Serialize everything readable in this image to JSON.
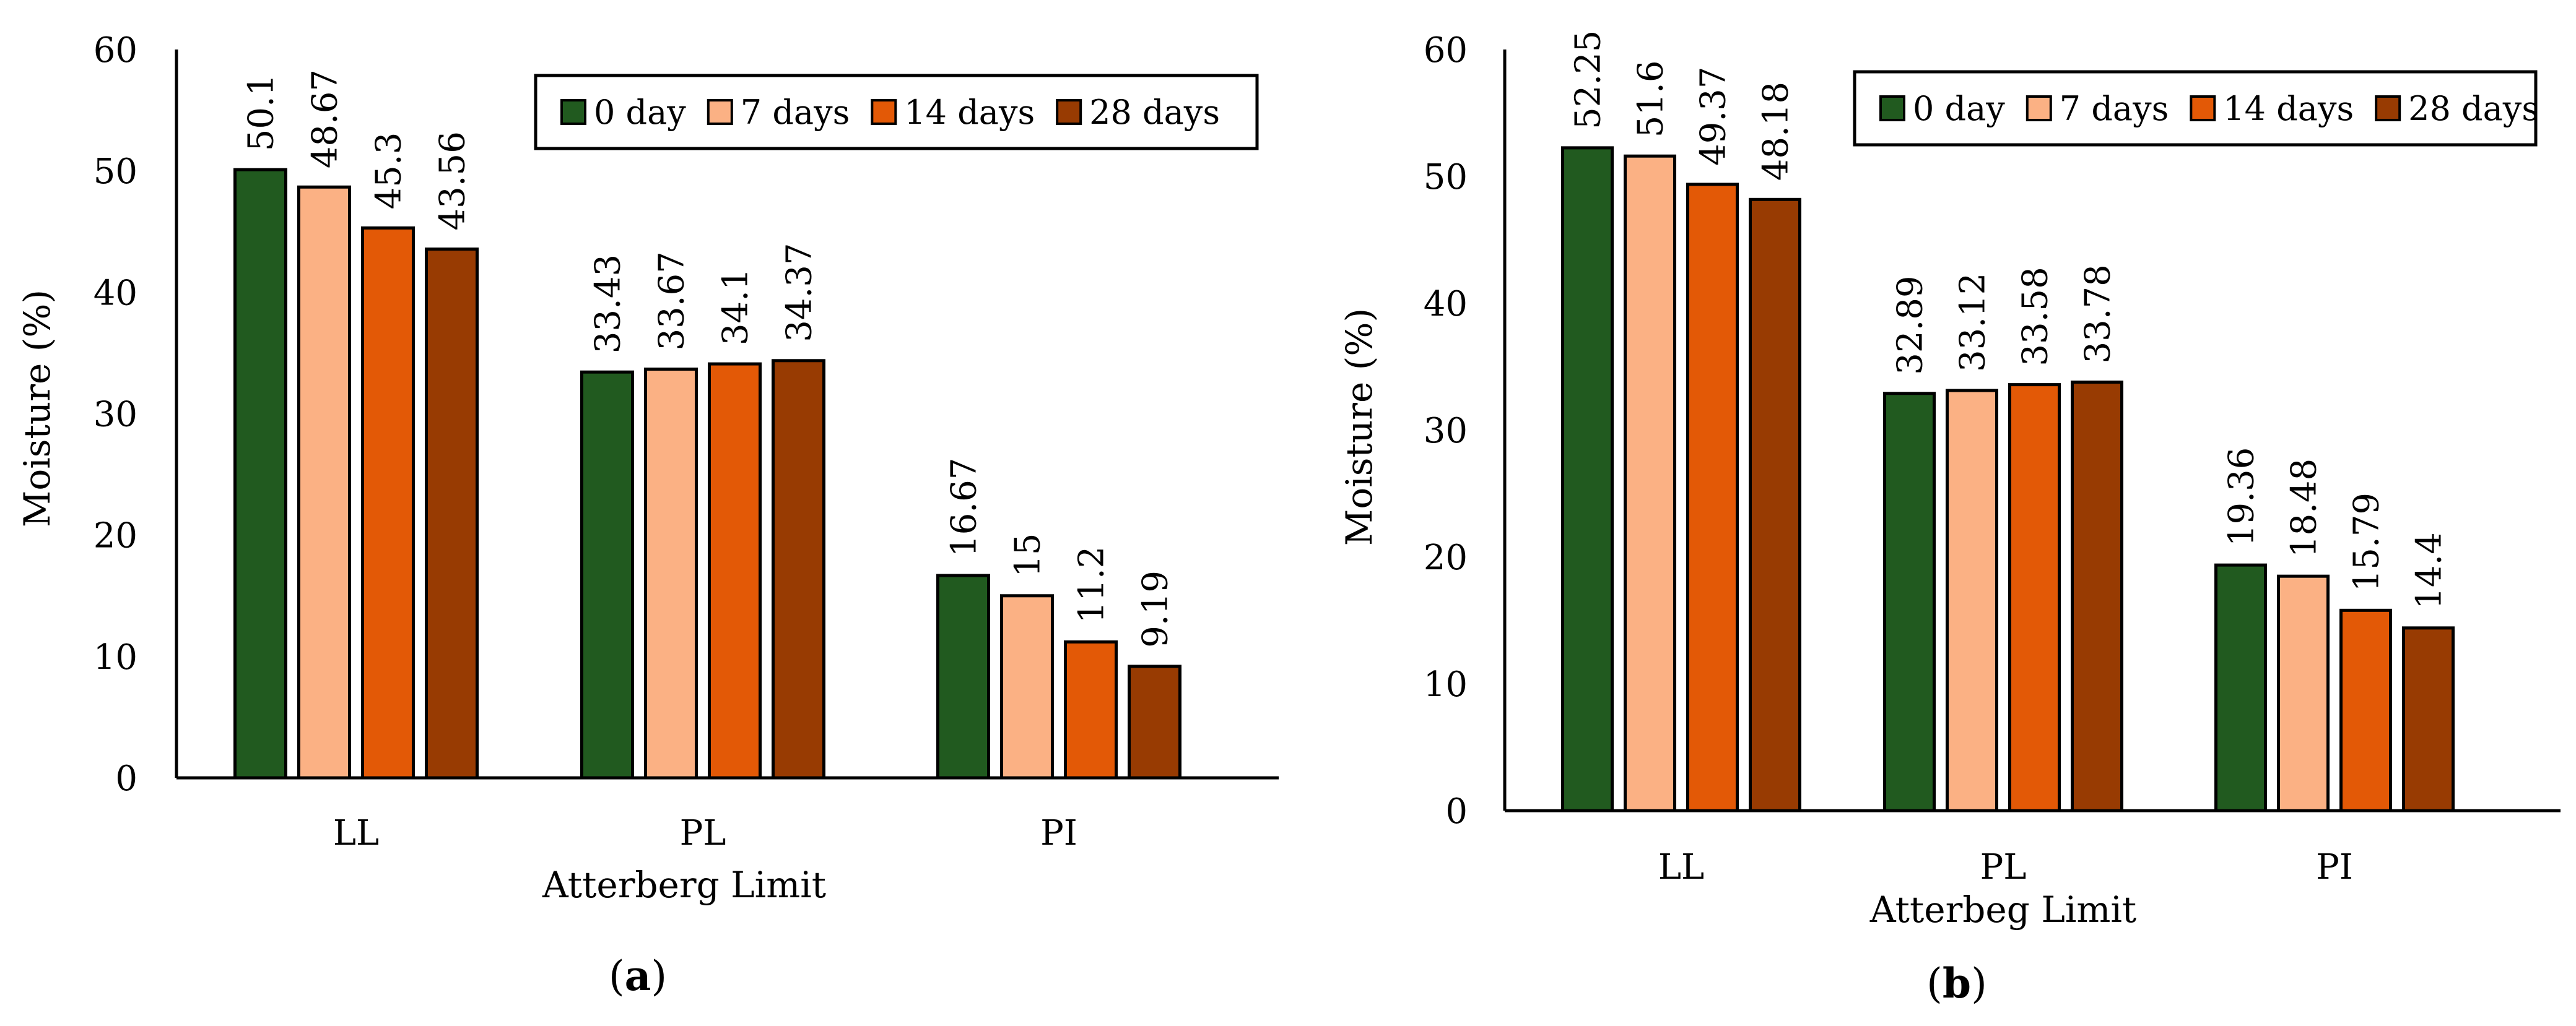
{
  "chart_data": [
    {
      "type": "bar",
      "panel": "a",
      "categories": [
        "LL",
        "PL",
        "PI"
      ],
      "series": [
        {
          "name": "0 day",
          "color": "#215a1f",
          "values": [
            50.1,
            33.43,
            16.67
          ],
          "labels": [
            "50.1",
            "33.43",
            "16.67"
          ]
        },
        {
          "name": "7 days",
          "color": "#fbb184",
          "values": [
            48.67,
            33.67,
            15
          ],
          "labels": [
            "48.67",
            "33.67",
            "15"
          ]
        },
        {
          "name": "14 days",
          "color": "#e35906",
          "values": [
            45.3,
            34.1,
            11.2
          ],
          "labels": [
            "45.3",
            "34.1",
            "11.2"
          ]
        },
        {
          "name": "28 days",
          "color": "#983b02",
          "values": [
            43.56,
            34.37,
            9.19
          ],
          "labels": [
            "43.56",
            "34.37",
            "9.19"
          ]
        }
      ],
      "xlabel": "Atterberg Limit",
      "ylabel": "Moisture (%)",
      "ylim": [
        0,
        60
      ],
      "yticks": [
        "0",
        "10",
        "20",
        "30",
        "40",
        "50",
        "60"
      ],
      "legend_position": "top-right",
      "grid": false
    },
    {
      "type": "bar",
      "panel": "b",
      "categories": [
        "LL",
        "PL",
        "PI"
      ],
      "series": [
        {
          "name": "0 day",
          "color": "#215a1f",
          "values": [
            52.25,
            32.89,
            19.36
          ],
          "labels": [
            "52.25",
            "32.89",
            "19.36"
          ]
        },
        {
          "name": "7 days",
          "color": "#fbb184",
          "values": [
            51.6,
            33.12,
            18.48
          ],
          "labels": [
            "51.6",
            "33.12",
            "18.48"
          ]
        },
        {
          "name": "14 days",
          "color": "#e35906",
          "values": [
            49.37,
            33.58,
            15.79
          ],
          "labels": [
            "49.37",
            "33.58",
            "15.79"
          ]
        },
        {
          "name": "28 days",
          "color": "#983b02",
          "values": [
            48.18,
            33.78,
            14.4
          ],
          "labels": [
            "48.18",
            "33.78",
            "14.4"
          ]
        }
      ],
      "xlabel": "Atterbeg Limit",
      "ylabel": "Moisture (%)",
      "ylim": [
        0,
        60
      ],
      "yticks": [
        "0",
        "10",
        "20",
        "30",
        "40",
        "50",
        "60"
      ],
      "legend_position": "top-right",
      "grid": false
    }
  ],
  "panels": {
    "a": {
      "open": "(",
      "letter": "a",
      "close": ")"
    },
    "b": {
      "open": "(",
      "letter": "b",
      "close": ")"
    }
  }
}
